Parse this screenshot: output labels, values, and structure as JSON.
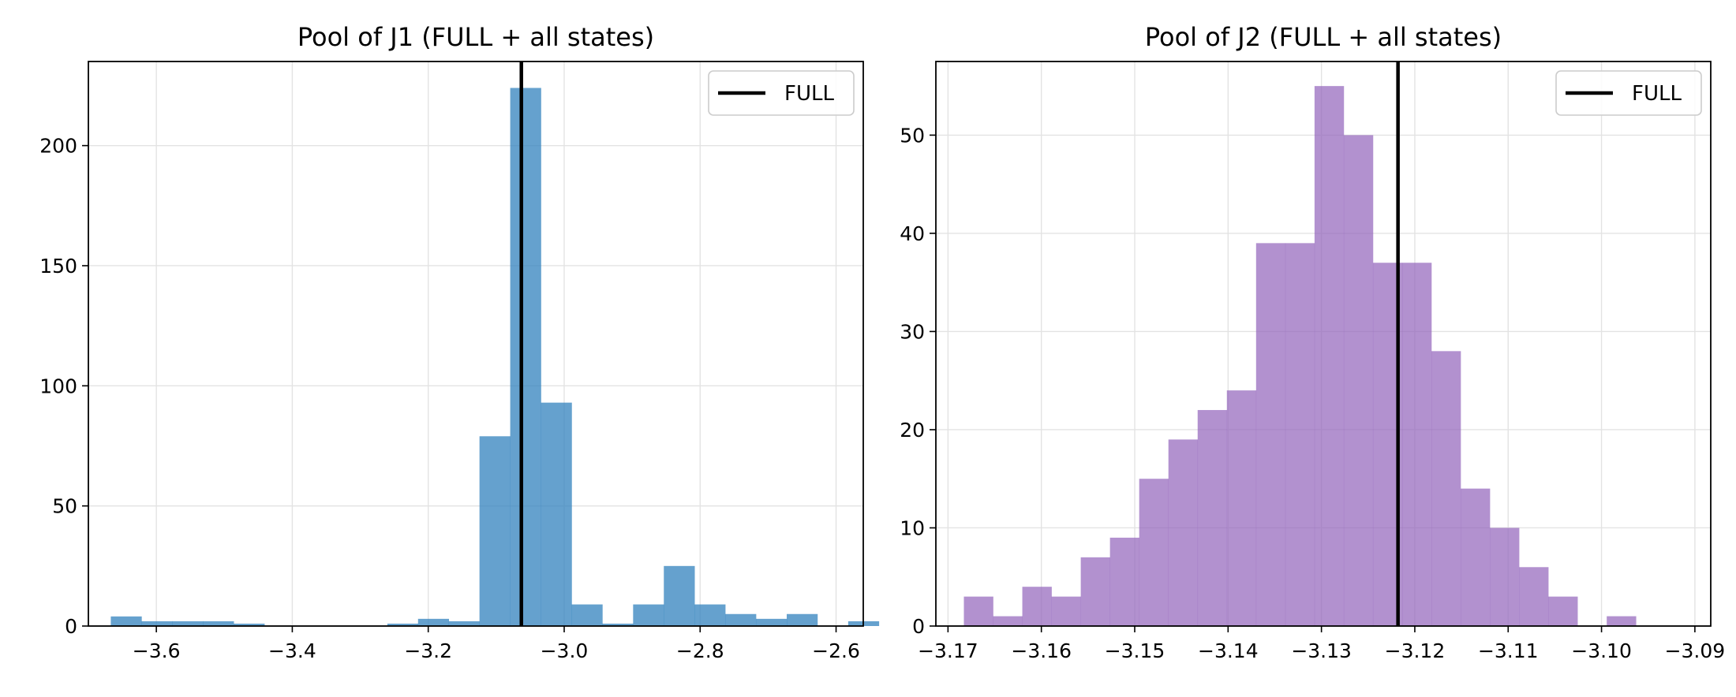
{
  "chart_data": [
    {
      "type": "bar",
      "title": "Pool of J1 (FULL + all states)",
      "xlabel": "",
      "ylabel": "",
      "color": "#3182bd",
      "bar_opacity": 0.75,
      "xlim": [
        -3.7,
        -2.56
      ],
      "ylim": [
        0,
        235
      ],
      "xticks": [
        -3.6,
        -3.4,
        -3.2,
        -3.0,
        -2.8,
        -2.6
      ],
      "xtick_labels": [
        "−3.6",
        "−3.4",
        "−3.2",
        "−3.0",
        "−2.8",
        "−2.6"
      ],
      "yticks": [
        0,
        50,
        100,
        150,
        200
      ],
      "ytick_labels": [
        "0",
        "50",
        "100",
        "150",
        "200"
      ],
      "grid": true,
      "legend": {
        "entries": [
          "FULL"
        ],
        "placement": "top-right"
      },
      "full_line": {
        "label": "FULL",
        "x": -3.063,
        "color": "#000000"
      },
      "bins": {
        "start": -3.667,
        "width": 0.0452,
        "counts": [
          4,
          2,
          2,
          2,
          1,
          0,
          0,
          0,
          0,
          1,
          3,
          2,
          79,
          224,
          93,
          9,
          1,
          9,
          25,
          9,
          5,
          3,
          5,
          0,
          2
        ]
      }
    },
    {
      "type": "bar",
      "title": "Pool of J2 (FULL + all states)",
      "xlabel": "",
      "ylabel": "",
      "color": "#9467bd",
      "bar_opacity": 0.72,
      "xlim": [
        -3.1713,
        -3.0883
      ],
      "ylim": [
        0,
        57.5
      ],
      "xticks": [
        -3.17,
        -3.16,
        -3.15,
        -3.14,
        -3.13,
        -3.12,
        -3.11,
        -3.1,
        -3.09
      ],
      "xtick_labels": [
        "−3.17",
        "−3.16",
        "−3.15",
        "−3.14",
        "−3.13",
        "−3.12",
        "−3.11",
        "−3.10",
        "−3.09"
      ],
      "yticks": [
        0,
        10,
        20,
        30,
        40,
        50
      ],
      "ytick_labels": [
        "0",
        "10",
        "20",
        "30",
        "40",
        "50"
      ],
      "grid": true,
      "legend": {
        "entries": [
          "FULL"
        ],
        "placement": "top-right"
      },
      "full_line": {
        "label": "FULL",
        "x": -3.1218,
        "color": "#000000"
      },
      "bins": {
        "start": -3.1683,
        "width": 0.00313,
        "counts": [
          3,
          1,
          4,
          3,
          7,
          9,
          15,
          19,
          22,
          24,
          39,
          39,
          55,
          50,
          37,
          37,
          28,
          14,
          10,
          6,
          3,
          0,
          1
        ]
      }
    }
  ]
}
